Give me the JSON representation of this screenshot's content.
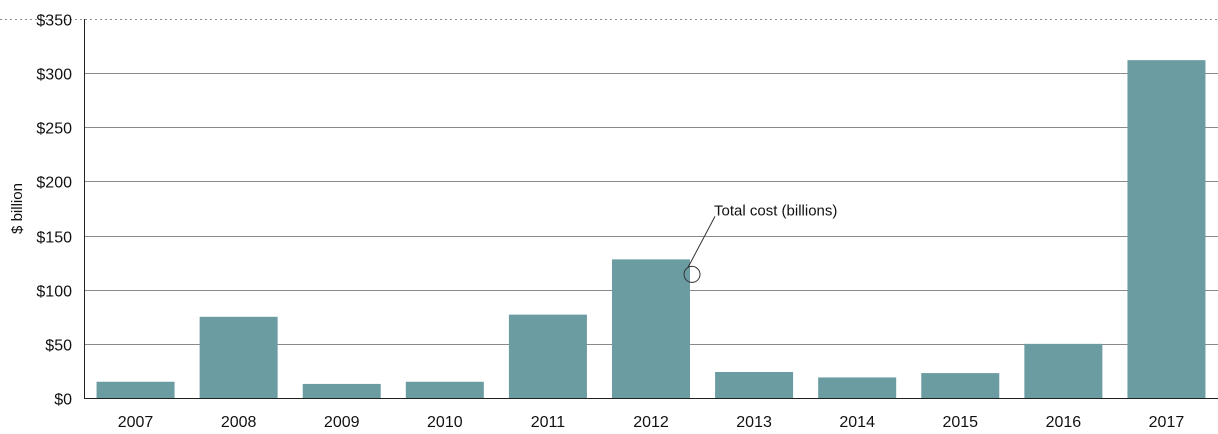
{
  "chart_data": {
    "type": "bar",
    "categories": [
      "2007",
      "2008",
      "2009",
      "2010",
      "2011",
      "2012",
      "2013",
      "2014",
      "2015",
      "2016",
      "2017"
    ],
    "values": [
      15,
      75,
      13,
      15,
      77,
      128,
      24,
      19,
      23,
      50,
      312
    ],
    "ylabel": "$ billion",
    "ylim": [
      0,
      350
    ],
    "yticks": [
      0,
      50,
      100,
      150,
      200,
      250,
      300,
      350
    ],
    "ytick_labels": [
      "$0",
      "$50",
      "$100",
      "$150",
      "$200",
      "$250",
      "$300",
      "$350"
    ],
    "grid": true,
    "annotation": {
      "text": "Total cost (billions)",
      "target_category": "2012"
    },
    "colors": {
      "bar": "#6a9ca2",
      "grid": "#8a8a8a",
      "axis": "#222222"
    }
  }
}
